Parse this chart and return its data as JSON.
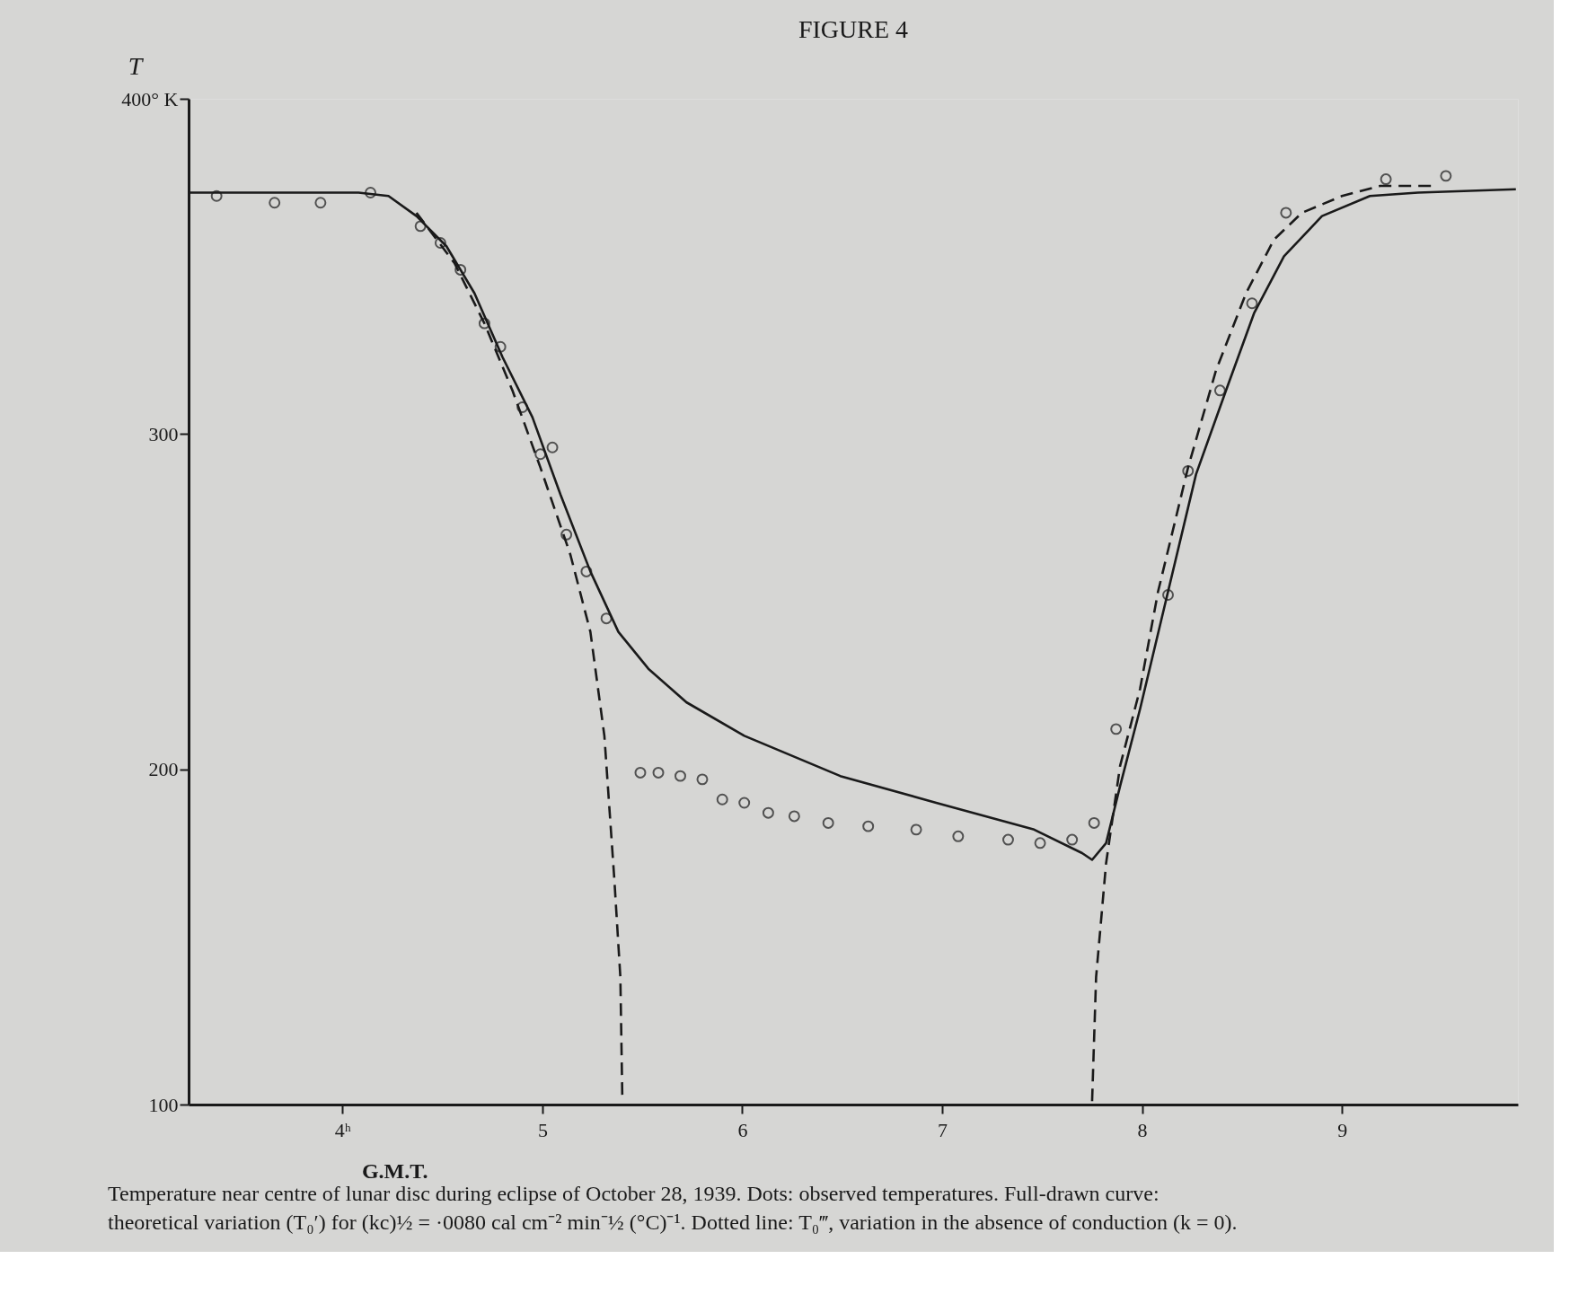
{
  "chart_data": {
    "type": "line",
    "title": "FIGURE 4",
    "xlabel": "G.M.T.",
    "ylabel": "T",
    "xlim": [
      3.23,
      9.88
    ],
    "ylim": [
      100,
      400
    ],
    "xticks": [
      {
        "value": 4,
        "label": "4ʰ"
      },
      5,
      6,
      7,
      8,
      9
    ],
    "yticks": [
      100,
      200,
      300,
      {
        "value": 400,
        "label": "400° K"
      }
    ],
    "grid": false,
    "series": [
      {
        "type": "scatter",
        "marker": "circle",
        "color": "#1a1a1a",
        "x": [
          3.37,
          3.66,
          3.89,
          4.14,
          4.39,
          4.49,
          4.59,
          4.71,
          4.79,
          4.9,
          4.99,
          5.05,
          5.12,
          5.22,
          5.32,
          5.49,
          5.58,
          5.69,
          5.8,
          5.9,
          6.01,
          6.13,
          6.26,
          6.43,
          6.63,
          6.87,
          7.08,
          7.33,
          7.49,
          7.65,
          7.76,
          7.87,
          8.13,
          8.23,
          8.39,
          8.55,
          8.72,
          9.22,
          9.52
        ],
        "values": [
          371,
          369,
          369,
          372,
          362,
          357,
          349,
          333,
          326,
          308,
          294,
          296,
          270,
          259,
          245,
          199,
          199,
          198,
          197,
          191,
          190,
          187,
          186,
          184,
          183,
          182,
          180,
          179,
          178,
          179,
          184,
          212,
          252,
          289,
          313,
          339,
          366,
          376,
          377
        ]
      },
      {
        "line_style": "solid",
        "color": "#1a1a1a",
        "x": [
          3.23,
          4.08,
          4.23,
          4.37,
          4.52,
          4.66,
          4.8,
          4.95,
          5.09,
          5.24,
          5.38,
          5.53,
          5.72,
          6.01,
          6.49,
          6.97,
          7.46,
          7.7,
          7.75,
          7.82,
          7.89,
          7.99,
          8.13,
          8.27,
          8.42,
          8.56,
          8.71,
          8.9,
          9.14,
          9.38,
          9.87
        ],
        "values": [
          372,
          372,
          371,
          365,
          356,
          342,
          323,
          305,
          282,
          259,
          241,
          230,
          220,
          210,
          198,
          190,
          182,
          175,
          173,
          178,
          195,
          218,
          253,
          288,
          313,
          336,
          353,
          365,
          371,
          372,
          373
        ]
      },
      {
        "line_style": "dashed",
        "color": "#1a1a1a",
        "x": [
          4.37,
          4.56,
          4.71,
          4.85,
          4.99,
          5.14,
          5.24,
          5.31,
          5.36,
          5.39,
          5.4,
          null,
          7.75,
          7.77,
          7.82,
          7.89,
          7.99,
          8.08,
          8.23,
          8.37,
          8.52,
          8.66,
          8.8,
          9.0,
          9.19,
          9.48
        ],
        "values": [
          366,
          351,
          333,
          313,
          290,
          264,
          241,
          210,
          167,
          138,
          101,
          null,
          101,
          138,
          172,
          201,
          224,
          253,
          290,
          319,
          342,
          358,
          366,
          371,
          374,
          374
        ]
      }
    ],
    "annotations": [
      "Temperature near centre of lunar disc during eclipse of October 28, 1939.    Dots: observed temperatures.    Full-drawn curve:",
      "theoretical variation (T₀′) for (kc)½ = ·0080 cal cm⁻² min⁻½ (°C)⁻¹. Dotted line: T₀‴, variation in the absence of conduction (k = 0)."
    ]
  }
}
